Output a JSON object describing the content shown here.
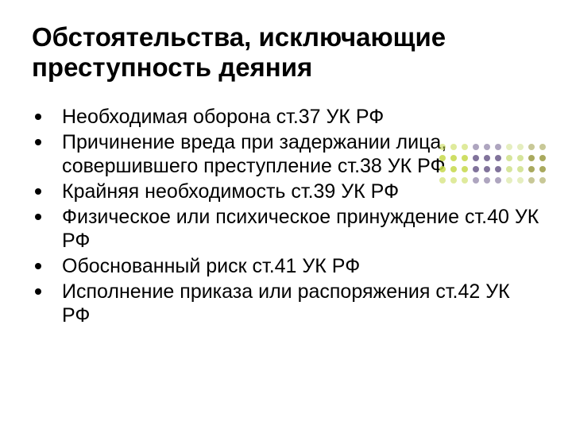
{
  "title": "Обстоятельства, исключающие преступность деяния",
  "bullets": [
    "Необходимая оборона ст.37 УК РФ",
    "Причинение вреда при задержании лица, совершившего преступление ст.38 УК РФ",
    "Крайняя необходимость ст.39 УК РФ",
    "Физическое или психическое принуждение ст.40 УК РФ",
    "Обоснованный риск ст.41 УК РФ",
    "Исполнение приказа или распоряжения ст.42 УК РФ"
  ],
  "decoration": {
    "cols": 10,
    "rows": 4,
    "dot_size": 8,
    "colors_row": [
      "#c5d84a",
      "#c5d84a",
      "#c5d84a",
      "#6b5b8a",
      "#6b5b8a",
      "#6b5b8a",
      "#cfe08a",
      "#cfe08a",
      "#9a9a42",
      "#9a9a42"
    ],
    "base_color": "#a0a070"
  }
}
